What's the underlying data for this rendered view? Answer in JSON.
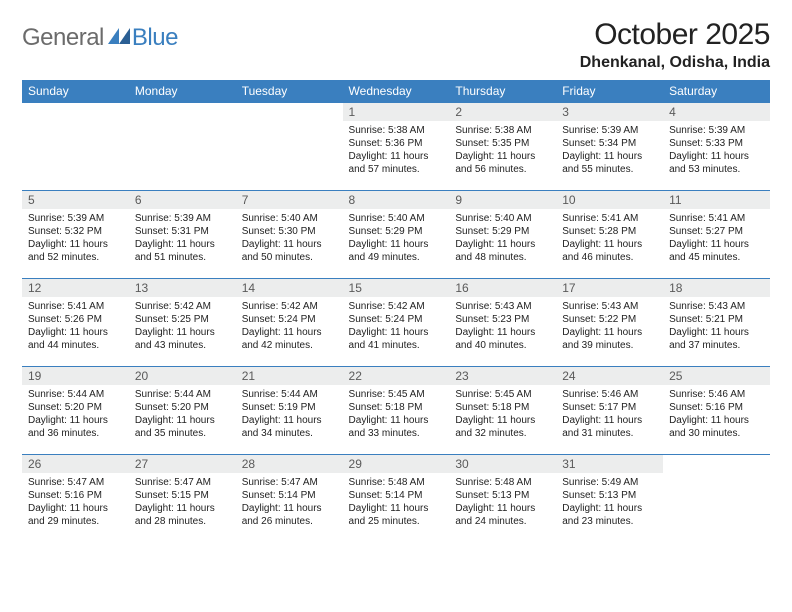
{
  "logo": {
    "text_general": "General",
    "text_blue": "Blue"
  },
  "title": "October 2025",
  "location": "Dhenkanal, Odisha, India",
  "colors": {
    "header_bg": "#3a7fbf",
    "header_text": "#ffffff",
    "daynum_bg": "#eceded",
    "daynum_text": "#5a5a5a",
    "body_text": "#222222",
    "logo_gray": "#6b6b6b",
    "logo_blue": "#3a7fbf",
    "cell_border": "#3a7fbf"
  },
  "weekdays": [
    "Sunday",
    "Monday",
    "Tuesday",
    "Wednesday",
    "Thursday",
    "Friday",
    "Saturday"
  ],
  "weeks": [
    [
      {
        "empty": true
      },
      {
        "empty": true
      },
      {
        "empty": true
      },
      {
        "day": "1",
        "sunrise": "Sunrise: 5:38 AM",
        "sunset": "Sunset: 5:36 PM",
        "daylight": "Daylight: 11 hours and 57 minutes."
      },
      {
        "day": "2",
        "sunrise": "Sunrise: 5:38 AM",
        "sunset": "Sunset: 5:35 PM",
        "daylight": "Daylight: 11 hours and 56 minutes."
      },
      {
        "day": "3",
        "sunrise": "Sunrise: 5:39 AM",
        "sunset": "Sunset: 5:34 PM",
        "daylight": "Daylight: 11 hours and 55 minutes."
      },
      {
        "day": "4",
        "sunrise": "Sunrise: 5:39 AM",
        "sunset": "Sunset: 5:33 PM",
        "daylight": "Daylight: 11 hours and 53 minutes."
      }
    ],
    [
      {
        "day": "5",
        "sunrise": "Sunrise: 5:39 AM",
        "sunset": "Sunset: 5:32 PM",
        "daylight": "Daylight: 11 hours and 52 minutes."
      },
      {
        "day": "6",
        "sunrise": "Sunrise: 5:39 AM",
        "sunset": "Sunset: 5:31 PM",
        "daylight": "Daylight: 11 hours and 51 minutes."
      },
      {
        "day": "7",
        "sunrise": "Sunrise: 5:40 AM",
        "sunset": "Sunset: 5:30 PM",
        "daylight": "Daylight: 11 hours and 50 minutes."
      },
      {
        "day": "8",
        "sunrise": "Sunrise: 5:40 AM",
        "sunset": "Sunset: 5:29 PM",
        "daylight": "Daylight: 11 hours and 49 minutes."
      },
      {
        "day": "9",
        "sunrise": "Sunrise: 5:40 AM",
        "sunset": "Sunset: 5:29 PM",
        "daylight": "Daylight: 11 hours and 48 minutes."
      },
      {
        "day": "10",
        "sunrise": "Sunrise: 5:41 AM",
        "sunset": "Sunset: 5:28 PM",
        "daylight": "Daylight: 11 hours and 46 minutes."
      },
      {
        "day": "11",
        "sunrise": "Sunrise: 5:41 AM",
        "sunset": "Sunset: 5:27 PM",
        "daylight": "Daylight: 11 hours and 45 minutes."
      }
    ],
    [
      {
        "day": "12",
        "sunrise": "Sunrise: 5:41 AM",
        "sunset": "Sunset: 5:26 PM",
        "daylight": "Daylight: 11 hours and 44 minutes."
      },
      {
        "day": "13",
        "sunrise": "Sunrise: 5:42 AM",
        "sunset": "Sunset: 5:25 PM",
        "daylight": "Daylight: 11 hours and 43 minutes."
      },
      {
        "day": "14",
        "sunrise": "Sunrise: 5:42 AM",
        "sunset": "Sunset: 5:24 PM",
        "daylight": "Daylight: 11 hours and 42 minutes."
      },
      {
        "day": "15",
        "sunrise": "Sunrise: 5:42 AM",
        "sunset": "Sunset: 5:24 PM",
        "daylight": "Daylight: 11 hours and 41 minutes."
      },
      {
        "day": "16",
        "sunrise": "Sunrise: 5:43 AM",
        "sunset": "Sunset: 5:23 PM",
        "daylight": "Daylight: 11 hours and 40 minutes."
      },
      {
        "day": "17",
        "sunrise": "Sunrise: 5:43 AM",
        "sunset": "Sunset: 5:22 PM",
        "daylight": "Daylight: 11 hours and 39 minutes."
      },
      {
        "day": "18",
        "sunrise": "Sunrise: 5:43 AM",
        "sunset": "Sunset: 5:21 PM",
        "daylight": "Daylight: 11 hours and 37 minutes."
      }
    ],
    [
      {
        "day": "19",
        "sunrise": "Sunrise: 5:44 AM",
        "sunset": "Sunset: 5:20 PM",
        "daylight": "Daylight: 11 hours and 36 minutes."
      },
      {
        "day": "20",
        "sunrise": "Sunrise: 5:44 AM",
        "sunset": "Sunset: 5:20 PM",
        "daylight": "Daylight: 11 hours and 35 minutes."
      },
      {
        "day": "21",
        "sunrise": "Sunrise: 5:44 AM",
        "sunset": "Sunset: 5:19 PM",
        "daylight": "Daylight: 11 hours and 34 minutes."
      },
      {
        "day": "22",
        "sunrise": "Sunrise: 5:45 AM",
        "sunset": "Sunset: 5:18 PM",
        "daylight": "Daylight: 11 hours and 33 minutes."
      },
      {
        "day": "23",
        "sunrise": "Sunrise: 5:45 AM",
        "sunset": "Sunset: 5:18 PM",
        "daylight": "Daylight: 11 hours and 32 minutes."
      },
      {
        "day": "24",
        "sunrise": "Sunrise: 5:46 AM",
        "sunset": "Sunset: 5:17 PM",
        "daylight": "Daylight: 11 hours and 31 minutes."
      },
      {
        "day": "25",
        "sunrise": "Sunrise: 5:46 AM",
        "sunset": "Sunset: 5:16 PM",
        "daylight": "Daylight: 11 hours and 30 minutes."
      }
    ],
    [
      {
        "day": "26",
        "sunrise": "Sunrise: 5:47 AM",
        "sunset": "Sunset: 5:16 PM",
        "daylight": "Daylight: 11 hours and 29 minutes."
      },
      {
        "day": "27",
        "sunrise": "Sunrise: 5:47 AM",
        "sunset": "Sunset: 5:15 PM",
        "daylight": "Daylight: 11 hours and 28 minutes."
      },
      {
        "day": "28",
        "sunrise": "Sunrise: 5:47 AM",
        "sunset": "Sunset: 5:14 PM",
        "daylight": "Daylight: 11 hours and 26 minutes."
      },
      {
        "day": "29",
        "sunrise": "Sunrise: 5:48 AM",
        "sunset": "Sunset: 5:14 PM",
        "daylight": "Daylight: 11 hours and 25 minutes."
      },
      {
        "day": "30",
        "sunrise": "Sunrise: 5:48 AM",
        "sunset": "Sunset: 5:13 PM",
        "daylight": "Daylight: 11 hours and 24 minutes."
      },
      {
        "day": "31",
        "sunrise": "Sunrise: 5:49 AM",
        "sunset": "Sunset: 5:13 PM",
        "daylight": "Daylight: 11 hours and 23 minutes."
      },
      {
        "empty": true
      }
    ]
  ]
}
